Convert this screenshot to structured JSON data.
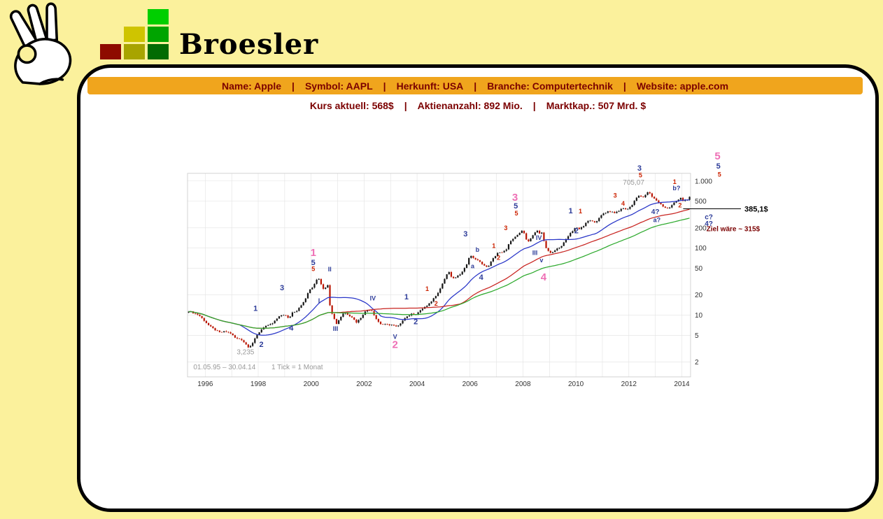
{
  "logo": {
    "brand": "Broesler",
    "square_colors": [
      "#00cf00",
      "#cfc400",
      "#00a400",
      "#8e0b00",
      "#a8a400",
      "#036b03"
    ]
  },
  "colors": {
    "page_bg": "#fbf19c",
    "header_bar_bg": "#f0a51d",
    "header_text": "#7b0000",
    "panel_bg": "#ffffff",
    "panel_border": "#000000"
  },
  "header": {
    "sep": "|",
    "items": [
      "Name: Apple",
      "Symbol: AAPL",
      "Herkunft: USA",
      "Branche: Computertechnik",
      "Website: apple.com"
    ]
  },
  "subheader": {
    "sep": "|",
    "items": [
      "Kurs aktuell: 568$",
      "Aktienanzahl: 892 Mio.",
      "Marktkap.: 507 Mrd. $"
    ]
  },
  "chart_data": {
    "type": "candlestick",
    "y_scale": "log",
    "grid": true,
    "x_range": [
      1995.33,
      2014.33
    ],
    "y_range": [
      1.2,
      1300
    ],
    "x_ticks": [
      1996,
      1998,
      2000,
      2002,
      2004,
      2006,
      2008,
      2010,
      2012,
      2014
    ],
    "y_ticks": [
      {
        "v": 1000,
        "label": "1.000"
      },
      {
        "v": 500,
        "label": "500"
      },
      {
        "v": 200,
        "label": "200"
      },
      {
        "v": 100,
        "label": "100"
      },
      {
        "v": 50,
        "label": "50"
      },
      {
        "v": 20,
        "label": "20"
      },
      {
        "v": 10,
        "label": "10"
      },
      {
        "v": 5,
        "label": "5"
      },
      {
        "v": 2,
        "label": "2"
      }
    ],
    "candle_colors": {
      "up": "#161616",
      "down": "#b91400"
    },
    "moving_averages": [
      {
        "window": 24,
        "color": "#2936c8"
      },
      {
        "window": 60,
        "color": "#c82420"
      },
      {
        "window": 96,
        "color": "#2eaa2e"
      }
    ],
    "level_line": {
      "value": 385.1,
      "label": "385,1$",
      "color": "#000000"
    },
    "wave_colors": {
      "pink": "#ee6fb5",
      "blue": "#2d3c99",
      "red": "#cc2200",
      "gray": "#999999",
      "maroon": "#7b0000"
    },
    "monthly_close_anchors": [
      [
        1995.38,
        11.5
      ],
      [
        1995.55,
        10.8
      ],
      [
        1995.75,
        10.1
      ],
      [
        1995.95,
        8.4
      ],
      [
        1996.15,
        6.9
      ],
      [
        1996.35,
        6.1
      ],
      [
        1996.55,
        5.5
      ],
      [
        1996.75,
        5.7
      ],
      [
        1996.95,
        5.4
      ],
      [
        1997.15,
        4.5
      ],
      [
        1997.35,
        4.4
      ],
      [
        1997.5,
        3.8
      ],
      [
        1997.65,
        3.3
      ],
      [
        1997.8,
        3.9
      ],
      [
        1997.95,
        5.0
      ],
      [
        1998.1,
        6.0
      ],
      [
        1998.25,
        6.9
      ],
      [
        1998.4,
        7.0
      ],
      [
        1998.55,
        7.6
      ],
      [
        1998.7,
        8.8
      ],
      [
        1998.85,
        9.9
      ],
      [
        1999.0,
        10.2
      ],
      [
        1999.15,
        8.8
      ],
      [
        1999.3,
        11.1
      ],
      [
        1999.45,
        11.6
      ],
      [
        1999.6,
        13.9
      ],
      [
        1999.75,
        16.1
      ],
      [
        1999.9,
        22.6
      ],
      [
        2000.05,
        25.9
      ],
      [
        2000.2,
        33.8
      ],
      [
        2000.28,
        36.1
      ],
      [
        2000.4,
        27.7
      ],
      [
        2000.5,
        23.4
      ],
      [
        2000.62,
        29.8
      ],
      [
        2000.72,
        12.9
      ],
      [
        2000.82,
        9.9
      ],
      [
        2000.95,
        7.4
      ],
      [
        2001.1,
        9.2
      ],
      [
        2001.25,
        11.2
      ],
      [
        2001.4,
        10.1
      ],
      [
        2001.55,
        9.3
      ],
      [
        2001.7,
        7.8
      ],
      [
        2001.85,
        8.9
      ],
      [
        2002.0,
        10.9
      ],
      [
        2002.15,
        12.1
      ],
      [
        2002.3,
        11.6
      ],
      [
        2002.45,
        8.9
      ],
      [
        2002.6,
        7.4
      ],
      [
        2002.75,
        7.3
      ],
      [
        2002.9,
        7.2
      ],
      [
        2003.05,
        7.2
      ],
      [
        2003.2,
        6.7
      ],
      [
        2003.35,
        7.1
      ],
      [
        2003.5,
        9.0
      ],
      [
        2003.65,
        9.7
      ],
      [
        2003.8,
        10.4
      ],
      [
        2003.95,
        10.4
      ],
      [
        2004.1,
        11.4
      ],
      [
        2004.25,
        13.0
      ],
      [
        2004.4,
        13.8
      ],
      [
        2004.55,
        16.3
      ],
      [
        2004.7,
        19.4
      ],
      [
        2004.85,
        23.7
      ],
      [
        2005.0,
        32.2
      ],
      [
        2005.1,
        38.5
      ],
      [
        2005.2,
        44.9
      ],
      [
        2005.3,
        36.0
      ],
      [
        2005.45,
        35.8
      ],
      [
        2005.6,
        39.8
      ],
      [
        2005.75,
        47.7
      ],
      [
        2005.85,
        53.4
      ],
      [
        2005.95,
        71.9
      ],
      [
        2006.05,
        75.5
      ],
      [
        2006.2,
        68.5
      ],
      [
        2006.35,
        62.7
      ],
      [
        2006.5,
        57.3
      ],
      [
        2006.6,
        51.2
      ],
      [
        2006.7,
        54.5
      ],
      [
        2006.85,
        67.8
      ],
      [
        2006.95,
        76.0
      ],
      [
        2007.05,
        85.7
      ],
      [
        2007.2,
        84.6
      ],
      [
        2007.35,
        92.9
      ],
      [
        2007.5,
        122.0
      ],
      [
        2007.6,
        131.8
      ],
      [
        2007.75,
        153.5
      ],
      [
        2007.9,
        167.8
      ],
      [
        2008.0,
        198.1
      ],
      [
        2008.1,
        135.4
      ],
      [
        2008.22,
        125.0
      ],
      [
        2008.35,
        147.5
      ],
      [
        2008.47,
        173.9
      ],
      [
        2008.56,
        185.6
      ],
      [
        2008.65,
        158.9
      ],
      [
        2008.72,
        169.5
      ],
      [
        2008.82,
        113.7
      ],
      [
        2008.92,
        92.7
      ],
      [
        2009.05,
        85.6
      ],
      [
        2009.18,
        89.3
      ],
      [
        2009.3,
        98.2
      ],
      [
        2009.45,
        105.1
      ],
      [
        2009.55,
        125.8
      ],
      [
        2009.68,
        142.4
      ],
      [
        2009.8,
        168.2
      ],
      [
        2009.92,
        185.3
      ],
      [
        2010.0,
        210.7
      ],
      [
        2010.12,
        192.1
      ],
      [
        2010.25,
        204.6
      ],
      [
        2010.38,
        235.0
      ],
      [
        2010.48,
        261.1
      ],
      [
        2010.58,
        251.5
      ],
      [
        2010.68,
        243.1
      ],
      [
        2010.8,
        257.3
      ],
      [
        2010.9,
        283.8
      ],
      [
        2011.0,
        322.6
      ],
      [
        2011.12,
        339.3
      ],
      [
        2011.22,
        353.2
      ],
      [
        2011.35,
        348.5
      ],
      [
        2011.48,
        335.7
      ],
      [
        2011.6,
        347.0
      ],
      [
        2011.72,
        390.5
      ],
      [
        2011.85,
        384.8
      ],
      [
        2011.95,
        381.3
      ],
      [
        2012.05,
        411.2
      ],
      [
        2012.15,
        456.5
      ],
      [
        2012.25,
        544.5
      ],
      [
        2012.35,
        599.6
      ],
      [
        2012.45,
        583.0
      ],
      [
        2012.55,
        577.3
      ],
      [
        2012.65,
        622.8
      ],
      [
        2012.75,
        702.0
      ],
      [
        2012.85,
        595.3
      ],
      [
        2012.95,
        560.0
      ],
      [
        2013.05,
        500.6
      ],
      [
        2013.15,
        455.5
      ],
      [
        2013.25,
        442.7
      ],
      [
        2013.35,
        390.5
      ],
      [
        2013.45,
        397.9
      ],
      [
        2013.55,
        396.5
      ],
      [
        2013.65,
        454.7
      ],
      [
        2013.75,
        487.2
      ],
      [
        2013.85,
        522.7
      ],
      [
        2013.95,
        561.0
      ],
      [
        2014.05,
        500.6
      ],
      [
        2014.15,
        526.2
      ],
      [
        2014.25,
        536.7
      ],
      [
        2014.3,
        590.1
      ]
    ],
    "annotations": [
      {
        "t": 2000.08,
        "p": 76,
        "text": "1",
        "c": "pink",
        "s": 15
      },
      {
        "t": 2003.17,
        "p": 3.25,
        "text": "2",
        "c": "pink",
        "s": 15
      },
      {
        "t": 2007.7,
        "p": 505,
        "text": "3",
        "c": "pink",
        "s": 15
      },
      {
        "t": 2008.78,
        "p": 33,
        "text": "4",
        "c": "pink",
        "s": 15
      },
      {
        "t": 2015.35,
        "p": 2100,
        "text": "5",
        "c": "pink",
        "s": 15
      },
      {
        "t": 2000.08,
        "p": 56,
        "text": "5",
        "c": "blue",
        "s": 11
      },
      {
        "t": 2007.73,
        "p": 388,
        "text": "5",
        "c": "blue",
        "s": 11
      },
      {
        "t": 2015.38,
        "p": 1530,
        "text": "5",
        "c": "blue",
        "s": 11
      },
      {
        "t": 2000.08,
        "p": 45.5,
        "text": "5",
        "c": "red",
        "s": 9
      },
      {
        "t": 2007.75,
        "p": 306,
        "text": "5",
        "c": "red",
        "s": 9
      },
      {
        "t": 2015.42,
        "p": 1160,
        "text": "5",
        "c": "red",
        "s": 9
      },
      {
        "t": 1997.9,
        "p": 11.6,
        "text": "1",
        "c": "blue",
        "s": 11
      },
      {
        "t": 1998.12,
        "p": 3.35,
        "text": "2",
        "c": "blue",
        "s": 11
      },
      {
        "t": 1998.9,
        "p": 23.5,
        "text": "3",
        "c": "blue",
        "s": 11
      },
      {
        "t": 1999.25,
        "p": 5.9,
        "text": "4",
        "c": "blue",
        "s": 11
      },
      {
        "t": 2000.3,
        "p": 15.3,
        "text": "I",
        "c": "blue",
        "s": 9
      },
      {
        "t": 2000.7,
        "p": 45,
        "text": "II",
        "c": "blue",
        "s": 9
      },
      {
        "t": 2000.92,
        "p": 5.8,
        "text": "III",
        "c": "blue",
        "s": 9
      },
      {
        "t": 2002.33,
        "p": 16.5,
        "text": "IV",
        "c": "blue",
        "s": 9
      },
      {
        "t": 2003.17,
        "p": 4.45,
        "text": "V",
        "c": "blue",
        "s": 9
      },
      {
        "t": 2003.6,
        "p": 17.2,
        "text": "1",
        "c": "blue",
        "s": 11
      },
      {
        "t": 2003.95,
        "p": 7.3,
        "text": "2",
        "c": "blue",
        "s": 11
      },
      {
        "t": 2004.38,
        "p": 23,
        "text": "1",
        "c": "red",
        "s": 9
      },
      {
        "t": 2004.72,
        "p": 13.8,
        "text": "2",
        "c": "red",
        "s": 9
      },
      {
        "t": 2005.83,
        "p": 150,
        "text": "3",
        "c": "blue",
        "s": 11
      },
      {
        "t": 2006.1,
        "p": 50,
        "text": "a",
        "c": "blue",
        "s": 9
      },
      {
        "t": 2006.28,
        "p": 88,
        "text": "b",
        "c": "blue",
        "s": 9
      },
      {
        "t": 2006.42,
        "p": 33.5,
        "text": "4",
        "c": "blue",
        "s": 11
      },
      {
        "t": 2006.9,
        "p": 100,
        "text": "1",
        "c": "red",
        "s": 9
      },
      {
        "t": 2007.08,
        "p": 67,
        "text": "2",
        "c": "red",
        "s": 9
      },
      {
        "t": 2007.35,
        "p": 185,
        "text": "3",
        "c": "red",
        "s": 9
      },
      {
        "t": 2008.45,
        "p": 79,
        "text": "III",
        "c": "blue",
        "s": 9
      },
      {
        "t": 2008.6,
        "p": 132,
        "text": "IV",
        "c": "blue",
        "s": 9
      },
      {
        "t": 2008.7,
        "p": 61,
        "text": "v",
        "c": "blue",
        "s": 9
      },
      {
        "t": 2009.8,
        "p": 330,
        "text": "1",
        "c": "blue",
        "s": 11
      },
      {
        "t": 2010.17,
        "p": 328,
        "text": "1",
        "c": "red",
        "s": 9
      },
      {
        "t": 2010.02,
        "p": 167,
        "text": "2",
        "c": "blue",
        "s": 11
      },
      {
        "t": 2011.48,
        "p": 565,
        "text": "3",
        "c": "red",
        "s": 9
      },
      {
        "t": 2011.78,
        "p": 430,
        "text": "4",
        "c": "red",
        "s": 9
      },
      {
        "t": 2012.4,
        "p": 1420,
        "text": "3",
        "c": "blue",
        "s": 11
      },
      {
        "t": 2012.44,
        "p": 1130,
        "text": "5",
        "c": "red",
        "s": 9
      },
      {
        "t": 2013.73,
        "p": 905,
        "text": "1",
        "c": "red",
        "s": 9
      },
      {
        "t": 2013.8,
        "p": 730,
        "text": "b?",
        "c": "blue",
        "s": 9
      },
      {
        "t": 2013.93,
        "p": 405,
        "text": "2",
        "c": "red",
        "s": 9
      },
      {
        "t": 2013.0,
        "p": 322,
        "text": "4?",
        "c": "blue",
        "s": 10
      },
      {
        "t": 2013.06,
        "p": 243,
        "text": "a?",
        "c": "blue",
        "s": 9
      },
      {
        "t": 2015.02,
        "p": 268,
        "text": "c?",
        "c": "blue",
        "s": 10
      },
      {
        "t": 2015.02,
        "p": 213,
        "text": "4?",
        "c": "blue",
        "s": 10
      },
      {
        "t": 2012.18,
        "p": 880,
        "text": "705,07",
        "c": "gray",
        "s": 10
      },
      {
        "t": 1997.52,
        "p": 2.6,
        "text": "3,235",
        "c": "gray",
        "s": 10
      },
      {
        "t": 1995.55,
        "p": 1.55,
        "text": "01.05.95 – 30.04.14",
        "c": "gray",
        "s": 10,
        "anchor": "start"
      },
      {
        "t": 1998.5,
        "p": 1.55,
        "text": "1 Tick = 1 Monat",
        "c": "gray",
        "s": 10,
        "anchor": "start"
      },
      {
        "t": 2014.93,
        "p": 178,
        "text": "Ziel wäre ~ 315$",
        "c": "maroon",
        "s": 10,
        "anchor": "start"
      }
    ]
  }
}
